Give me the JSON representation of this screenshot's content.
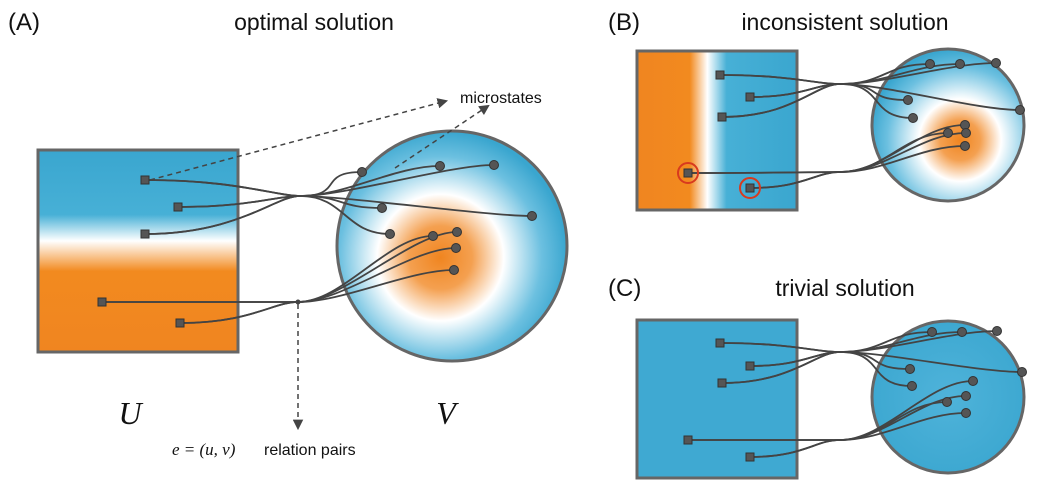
{
  "panels": [
    {
      "label": "(A)",
      "title": "optimal solution"
    },
    {
      "label": "(B)",
      "title": "inconsistent solution"
    },
    {
      "label": "(C)",
      "title": "trivial solution"
    }
  ],
  "annotations": {
    "microstates": "microstates",
    "set_u": "U",
    "set_v": "V",
    "edge_formula": "e = (u, v)",
    "edge_text": "relation pairs"
  }
}
